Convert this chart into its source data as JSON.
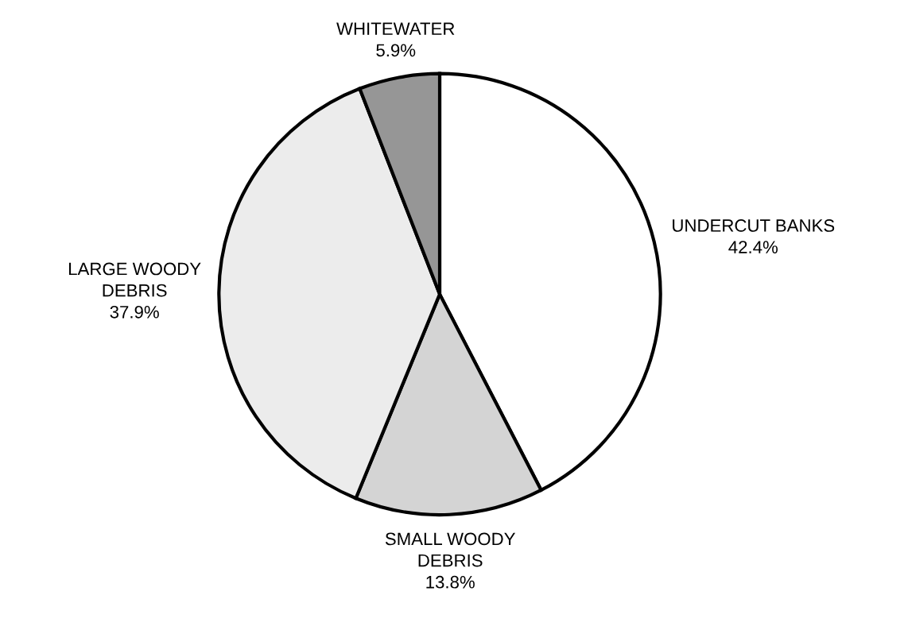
{
  "chart_data": {
    "type": "pie",
    "categories": [
      "UNDERCUT BANKS",
      "SMALL WOODY\nDEBRIS",
      "LARGE WOODY\nDEBRIS",
      "WHITEWATER"
    ],
    "values": [
      42.4,
      13.8,
      37.9,
      5.9
    ],
    "value_labels": [
      "42.4%",
      "13.8%",
      "37.9%",
      "5.9%"
    ],
    "colors": [
      "#ffffff",
      "#d4d4d4",
      "#ececec",
      "#969696"
    ],
    "legend": false
  }
}
